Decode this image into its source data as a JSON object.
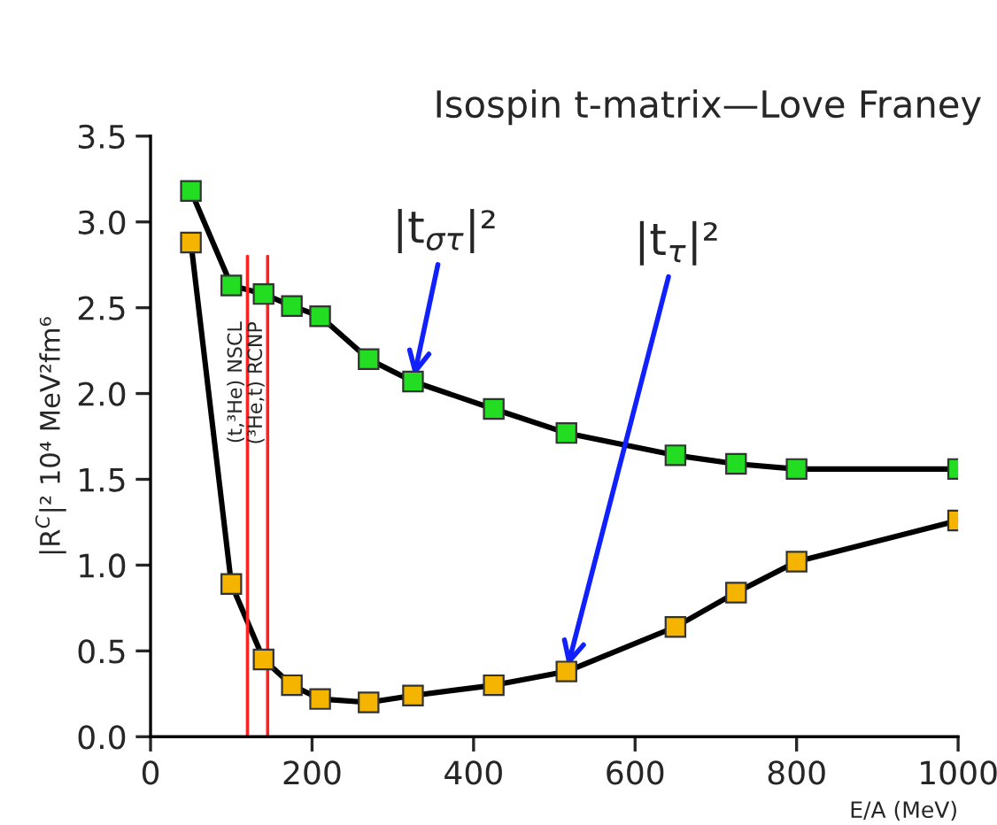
{
  "chart_data": {
    "type": "line",
    "title": "Isospin t-matrix—Love Franey",
    "xlabel": "E/A (MeV)",
    "ylabel": "|R$^{C}$|² 10⁴ MeV²fm⁶",
    "x": [
      50,
      100,
      140,
      175,
      210,
      270,
      325,
      425,
      515,
      650,
      725,
      800,
      1000
    ],
    "series": [
      {
        "color": "#22dd22",
        "values": [
          3.18,
          2.63,
          2.58,
          2.51,
          2.45,
          2.2,
          2.07,
          1.91,
          1.77,
          1.64,
          1.59,
          1.56,
          1.56
        ]
      },
      {
        "color": "#f5b400",
        "values": [
          2.88,
          0.89,
          0.45,
          0.3,
          0.22,
          0.2,
          0.24,
          0.3,
          0.38,
          0.64,
          0.84,
          1.02,
          1.26
        ]
      }
    ],
    "xlim": [
      0,
      1000
    ],
    "ylim": [
      0,
      3.5
    ],
    "xticks": [
      0,
      200,
      400,
      600,
      800,
      1000
    ],
    "yticks": [
      {
        "value": 0,
        "label": "0.0"
      },
      0.5,
      {
        "value": 1,
        "label": "1.0"
      },
      1.5,
      {
        "value": 2,
        "label": "2.0"
      },
      2.5,
      {
        "value": 3,
        "label": "3.0"
      },
      3.5
    ],
    "ref_lines": [
      {
        "axis": "x",
        "value": 120,
        "label": "(t,³He) NSCL",
        "color": "#ff2020"
      },
      {
        "axis": "x",
        "value": 145,
        "label": "(³He,t) RCNP",
        "color": "#ff2020"
      }
    ],
    "annotations": [
      {
        "text": "|t$_{στ}$|²",
        "x": 325,
        "y": 2.07
      },
      {
        "text": "|t$_{τ}$|²",
        "x": 515,
        "y": 0.38
      }
    ],
    "marker": "square",
    "grid": false,
    "legend": false
  }
}
